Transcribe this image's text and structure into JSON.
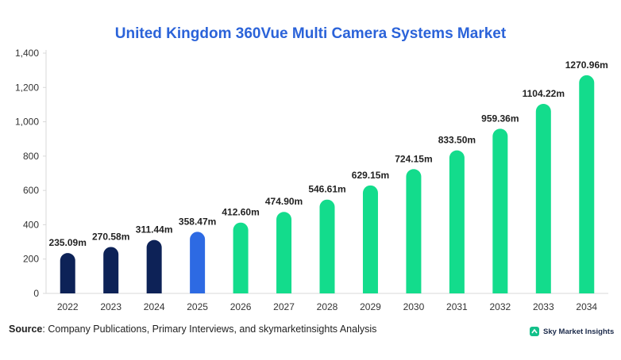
{
  "title": "United Kingdom 360Vue Multi Camera Systems Market",
  "source": {
    "label": "Source",
    "text": ": Company Publications, Primary Interviews, and skymarketinsights Analysis"
  },
  "logo": {
    "text": "Sky Market Insights",
    "icon": "sky-market-insights-logo-icon"
  },
  "colors": {
    "historical": "#0d2257",
    "current": "#2d6ae3",
    "forecast": "#13dc8c",
    "title": "#2b63d9"
  },
  "chart_data": {
    "type": "bar",
    "categories": [
      "2022",
      "2023",
      "2024",
      "2025",
      "2026",
      "2027",
      "2028",
      "2029",
      "2030",
      "2031",
      "2032",
      "2033",
      "2034"
    ],
    "values": [
      235.09,
      270.58,
      311.44,
      358.47,
      412.6,
      474.9,
      546.61,
      629.15,
      724.15,
      833.5,
      959.36,
      1104.22,
      1270.96
    ],
    "data_labels": [
      "235.09m",
      "270.58m",
      "311.44m",
      "358.47m",
      "412.60m",
      "474.90m",
      "546.61m",
      "629.15m",
      "724.15m",
      "833.50m",
      "959.36m",
      "1104.22m",
      "1270.96m"
    ],
    "bar_color_groups": [
      "historical",
      "historical",
      "historical",
      "current",
      "forecast",
      "forecast",
      "forecast",
      "forecast",
      "forecast",
      "forecast",
      "forecast",
      "forecast",
      "forecast"
    ],
    "yticks": [
      "0",
      "200",
      "400",
      "600",
      "800",
      "1,000",
      "1,200",
      "1,400"
    ],
    "ylim": [
      0,
      1400
    ],
    "xlabel": "",
    "ylabel": "",
    "grid": false,
    "legend": false
  }
}
